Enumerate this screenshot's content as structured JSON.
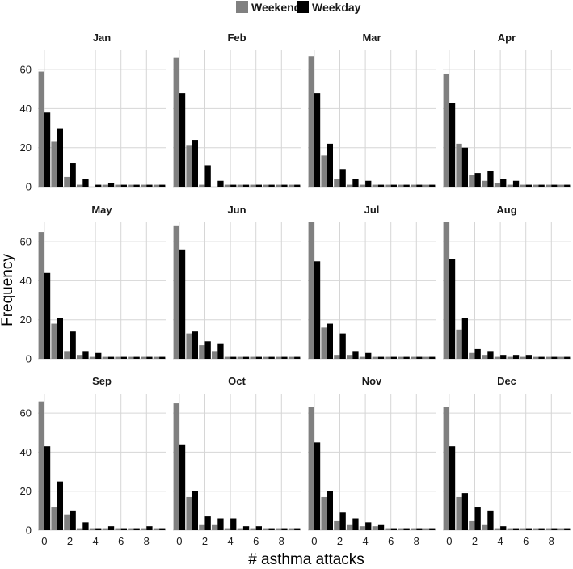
{
  "chart_data": {
    "type": "bar",
    "layout": "facet-grid 3x4",
    "xlabel": "# asthma attacks",
    "ylabel": "Frequency",
    "x": [
      0,
      1,
      2,
      3,
      4,
      5,
      6,
      7,
      8,
      9
    ],
    "x_ticks": [
      0,
      2,
      4,
      6,
      8
    ],
    "y_ticks": [
      0,
      20,
      40,
      60
    ],
    "ylim": [
      0,
      70
    ],
    "grid": true,
    "legend": {
      "position": "top",
      "entries": [
        "Weekend",
        "Weekday"
      ]
    },
    "colors": {
      "Weekend": "#808080",
      "Weekday": "#000000"
    },
    "panels": [
      {
        "title": "Jan",
        "series": [
          {
            "name": "Weekend",
            "values": [
              59,
              23,
              5,
              1,
              0,
              1,
              1,
              1,
              1,
              1
            ]
          },
          {
            "name": "Weekday",
            "values": [
              38,
              30,
              12,
              4,
              1,
              2,
              1,
              1,
              1,
              1
            ]
          }
        ]
      },
      {
        "title": "Feb",
        "series": [
          {
            "name": "Weekend",
            "values": [
              66,
              21,
              1,
              0,
              1,
              1,
              1,
              1,
              1,
              1
            ]
          },
          {
            "name": "Weekday",
            "values": [
              48,
              24,
              11,
              3,
              1,
              1,
              1,
              1,
              1,
              1
            ]
          }
        ]
      },
      {
        "title": "Mar",
        "series": [
          {
            "name": "Weekend",
            "values": [
              67,
              16,
              4,
              1,
              1,
              1,
              1,
              1,
              1,
              1
            ]
          },
          {
            "name": "Weekday",
            "values": [
              48,
              22,
              9,
              4,
              3,
              1,
              1,
              1,
              1,
              1
            ]
          }
        ]
      },
      {
        "title": "Apr",
        "series": [
          {
            "name": "Weekend",
            "values": [
              58,
              22,
              6,
              3,
              2,
              1,
              1,
              1,
              1,
              1
            ]
          },
          {
            "name": "Weekday",
            "values": [
              43,
              20,
              7,
              8,
              4,
              3,
              1,
              1,
              1,
              1
            ]
          }
        ]
      },
      {
        "title": "May",
        "series": [
          {
            "name": "Weekend",
            "values": [
              65,
              18,
              4,
              2,
              1,
              1,
              1,
              1,
              1,
              1
            ]
          },
          {
            "name": "Weekday",
            "values": [
              44,
              21,
              14,
              4,
              3,
              1,
              1,
              1,
              1,
              1
            ]
          }
        ]
      },
      {
        "title": "Jun",
        "series": [
          {
            "name": "Weekend",
            "values": [
              68,
              13,
              7,
              4,
              1,
              1,
              1,
              1,
              1,
              1
            ]
          },
          {
            "name": "Weekday",
            "values": [
              56,
              14,
              9,
              8,
              1,
              1,
              1,
              1,
              1,
              1
            ]
          }
        ]
      },
      {
        "title": "Jul",
        "series": [
          {
            "name": "Weekend",
            "values": [
              70,
              16,
              2,
              2,
              1,
              1,
              1,
              1,
              1,
              1
            ]
          },
          {
            "name": "Weekday",
            "values": [
              50,
              18,
              13,
              4,
              3,
              1,
              1,
              1,
              1,
              1
            ]
          }
        ]
      },
      {
        "title": "Aug",
        "series": [
          {
            "name": "Weekend",
            "values": [
              70,
              15,
              3,
              2,
              1,
              1,
              1,
              1,
              1,
              1
            ]
          },
          {
            "name": "Weekday",
            "values": [
              51,
              21,
              5,
              4,
              2,
              2,
              2,
              1,
              1,
              1
            ]
          }
        ]
      },
      {
        "title": "Sep",
        "series": [
          {
            "name": "Weekend",
            "values": [
              66,
              12,
              8,
              1,
              1,
              1,
              1,
              1,
              1,
              1
            ]
          },
          {
            "name": "Weekday",
            "values": [
              43,
              25,
              10,
              4,
              1,
              2,
              1,
              1,
              2,
              1
            ]
          }
        ]
      },
      {
        "title": "Oct",
        "series": [
          {
            "name": "Weekend",
            "values": [
              65,
              17,
              3,
              3,
              1,
              1,
              1,
              1,
              1,
              1
            ]
          },
          {
            "name": "Weekday",
            "values": [
              44,
              20,
              7,
              6,
              6,
              2,
              2,
              1,
              1,
              1
            ]
          }
        ]
      },
      {
        "title": "Nov",
        "series": [
          {
            "name": "Weekend",
            "values": [
              63,
              17,
              5,
              3,
              2,
              2,
              1,
              1,
              1,
              1
            ]
          },
          {
            "name": "Weekday",
            "values": [
              45,
              20,
              9,
              6,
              4,
              3,
              1,
              1,
              1,
              1
            ]
          }
        ]
      },
      {
        "title": "Dec",
        "series": [
          {
            "name": "Weekend",
            "values": [
              63,
              17,
              5,
              3,
              1,
              1,
              1,
              1,
              1,
              1
            ]
          },
          {
            "name": "Weekday",
            "values": [
              43,
              19,
              12,
              10,
              2,
              1,
              1,
              1,
              1,
              1
            ]
          }
        ]
      }
    ]
  }
}
